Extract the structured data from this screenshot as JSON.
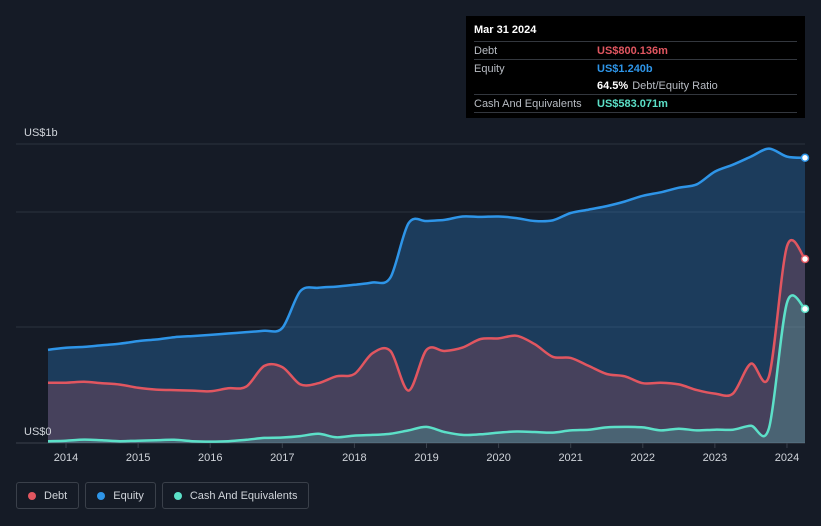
{
  "chart_data": {
    "type": "area",
    "y_top_label": "US$1b",
    "y_bottom_label": "US$0",
    "ylim": [
      0,
      1300
    ],
    "xlim": [
      2013.75,
      2024.25
    ],
    "x_ticks": [
      "2014",
      "2015",
      "2016",
      "2017",
      "2018",
      "2019",
      "2020",
      "2021",
      "2022",
      "2023",
      "2024"
    ],
    "grid": true,
    "series": [
      {
        "name": "Equity",
        "color": "#2e95e8",
        "points": [
          [
            2013.75,
            405
          ],
          [
            2014.0,
            414
          ],
          [
            2014.25,
            418
          ],
          [
            2014.5,
            425
          ],
          [
            2014.75,
            432
          ],
          [
            2015.0,
            443
          ],
          [
            2015.25,
            450
          ],
          [
            2015.5,
            460
          ],
          [
            2015.75,
            465
          ],
          [
            2016.0,
            470
          ],
          [
            2016.25,
            476
          ],
          [
            2016.5,
            482
          ],
          [
            2016.75,
            488
          ],
          [
            2017.0,
            500
          ],
          [
            2017.25,
            660
          ],
          [
            2017.5,
            675
          ],
          [
            2017.75,
            680
          ],
          [
            2018.0,
            688
          ],
          [
            2018.25,
            698
          ],
          [
            2018.5,
            720
          ],
          [
            2018.75,
            955
          ],
          [
            2019.0,
            965
          ],
          [
            2019.25,
            970
          ],
          [
            2019.5,
            985
          ],
          [
            2019.75,
            983
          ],
          [
            2020.0,
            985
          ],
          [
            2020.25,
            978
          ],
          [
            2020.5,
            965
          ],
          [
            2020.75,
            968
          ],
          [
            2021.0,
            1000
          ],
          [
            2021.25,
            1015
          ],
          [
            2021.5,
            1030
          ],
          [
            2021.75,
            1050
          ],
          [
            2022.0,
            1075
          ],
          [
            2022.25,
            1090
          ],
          [
            2022.5,
            1110
          ],
          [
            2022.75,
            1125
          ],
          [
            2023.0,
            1180
          ],
          [
            2023.25,
            1210
          ],
          [
            2023.5,
            1245
          ],
          [
            2023.75,
            1280
          ],
          [
            2024.0,
            1245
          ],
          [
            2024.25,
            1240
          ]
        ]
      },
      {
        "name": "Debt",
        "color": "#e15660",
        "points": [
          [
            2013.75,
            262
          ],
          [
            2014.0,
            262
          ],
          [
            2014.25,
            266
          ],
          [
            2014.5,
            260
          ],
          [
            2014.75,
            254
          ],
          [
            2015.0,
            240
          ],
          [
            2015.25,
            232
          ],
          [
            2015.5,
            230
          ],
          [
            2015.75,
            228
          ],
          [
            2016.0,
            225
          ],
          [
            2016.25,
            238
          ],
          [
            2016.5,
            245
          ],
          [
            2016.75,
            335
          ],
          [
            2017.0,
            330
          ],
          [
            2017.25,
            255
          ],
          [
            2017.5,
            260
          ],
          [
            2017.75,
            290
          ],
          [
            2018.0,
            300
          ],
          [
            2018.25,
            390
          ],
          [
            2018.5,
            400
          ],
          [
            2018.75,
            228
          ],
          [
            2019.0,
            405
          ],
          [
            2019.25,
            400
          ],
          [
            2019.5,
            415
          ],
          [
            2019.75,
            452
          ],
          [
            2020.0,
            455
          ],
          [
            2020.25,
            466
          ],
          [
            2020.5,
            430
          ],
          [
            2020.75,
            375
          ],
          [
            2021.0,
            370
          ],
          [
            2021.25,
            335
          ],
          [
            2021.5,
            300
          ],
          [
            2021.75,
            290
          ],
          [
            2022.0,
            260
          ],
          [
            2022.25,
            262
          ],
          [
            2022.5,
            255
          ],
          [
            2022.75,
            230
          ],
          [
            2023.0,
            215
          ],
          [
            2023.25,
            215
          ],
          [
            2023.5,
            345
          ],
          [
            2023.75,
            290
          ],
          [
            2024.0,
            855
          ],
          [
            2024.25,
            800
          ]
        ]
      },
      {
        "name": "Cash And Equivalents",
        "color": "#5ce0c8",
        "points": [
          [
            2013.75,
            8
          ],
          [
            2014.0,
            10
          ],
          [
            2014.25,
            15
          ],
          [
            2014.5,
            12
          ],
          [
            2014.75,
            8
          ],
          [
            2015.0,
            10
          ],
          [
            2015.25,
            12
          ],
          [
            2015.5,
            14
          ],
          [
            2015.75,
            8
          ],
          [
            2016.0,
            6
          ],
          [
            2016.25,
            8
          ],
          [
            2016.5,
            14
          ],
          [
            2016.75,
            22
          ],
          [
            2017.0,
            24
          ],
          [
            2017.25,
            30
          ],
          [
            2017.5,
            40
          ],
          [
            2017.75,
            25
          ],
          [
            2018.0,
            32
          ],
          [
            2018.25,
            35
          ],
          [
            2018.5,
            40
          ],
          [
            2018.75,
            55
          ],
          [
            2019.0,
            70
          ],
          [
            2019.25,
            48
          ],
          [
            2019.5,
            35
          ],
          [
            2019.75,
            38
          ],
          [
            2020.0,
            45
          ],
          [
            2020.25,
            50
          ],
          [
            2020.5,
            48
          ],
          [
            2020.75,
            45
          ],
          [
            2021.0,
            55
          ],
          [
            2021.25,
            58
          ],
          [
            2021.5,
            68
          ],
          [
            2021.75,
            70
          ],
          [
            2022.0,
            68
          ],
          [
            2022.25,
            55
          ],
          [
            2022.5,
            62
          ],
          [
            2022.75,
            55
          ],
          [
            2023.0,
            58
          ],
          [
            2023.25,
            58
          ],
          [
            2023.5,
            75
          ],
          [
            2023.75,
            65
          ],
          [
            2024.0,
            610
          ],
          [
            2024.25,
            583
          ]
        ]
      }
    ]
  },
  "tooltip": {
    "date": "Mar 31 2024",
    "debt_label": "Debt",
    "debt_value": "US$800.136m",
    "equity_label": "Equity",
    "equity_value": "US$1.240b",
    "ratio_value": "64.5%",
    "ratio_label": "Debt/Equity Ratio",
    "cash_label": "Cash And Equivalents",
    "cash_value": "US$583.071m"
  },
  "legend": [
    {
      "label": "Debt",
      "color": "#e15660"
    },
    {
      "label": "Equity",
      "color": "#2e95e8"
    },
    {
      "label": "Cash And Equivalents",
      "color": "#5ce0c8"
    }
  ]
}
